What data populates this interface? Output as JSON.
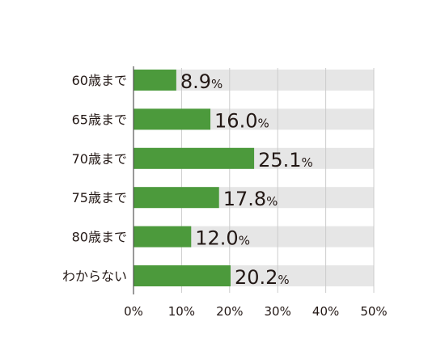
{
  "chart_data": {
    "type": "bar",
    "orientation": "horizontal",
    "categories": [
      "60歳まで",
      "65歳まで",
      "70歳まで",
      "75歳まで",
      "80歳まで",
      "わからない"
    ],
    "values": [
      8.9,
      16.0,
      25.1,
      17.8,
      12.0,
      20.2
    ],
    "value_labels": [
      "8.9",
      "16.0",
      "25.1",
      "17.8",
      "12.0",
      "20.2"
    ],
    "value_unit": "%",
    "xlim": [
      0,
      50
    ],
    "xticks": [
      0,
      10,
      20,
      30,
      40,
      50
    ],
    "xtick_labels": [
      "0%",
      "10%",
      "20%",
      "30%",
      "40%",
      "50%"
    ],
    "grid": "vertical",
    "bar_color": "#4c9a3c",
    "track_color": "#e6e6e6",
    "grid_color": "#cccccc",
    "text_color": "#231815"
  }
}
